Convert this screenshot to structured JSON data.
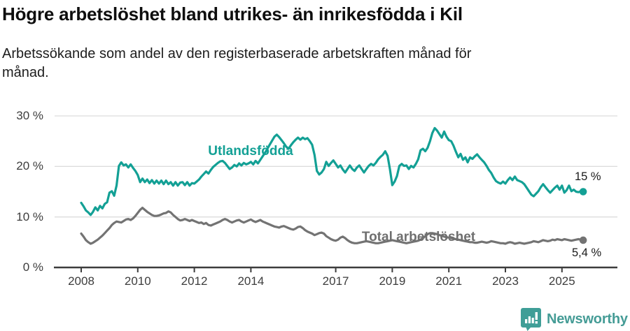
{
  "header": {
    "title": "Högre arbetslöshet bland utrikes- än inrikesfödda i Kil",
    "subtitle_lines": [
      "Arbetssökande som andel av den registerbaserade arbetskraften månad för",
      "månad."
    ]
  },
  "chart_data": {
    "type": "line",
    "unit": "%",
    "x_start": "2008-01",
    "x_end": "2025-10",
    "points_per_year": 12,
    "ylim": [
      0,
      30
    ],
    "grid": "horizontal",
    "legend_position": "inline-labels-on-chart",
    "y_ticks": [
      {
        "value": 0,
        "label": "0 %"
      },
      {
        "value": 10,
        "label": "10 %"
      },
      {
        "value": 20,
        "label": "20 %"
      },
      {
        "value": 30,
        "label": "30 %"
      }
    ],
    "x_ticks": [
      {
        "year": 2008,
        "label": "2008"
      },
      {
        "year": 2010,
        "label": "2010"
      },
      {
        "year": 2012,
        "label": "2012"
      },
      {
        "year": 2014,
        "label": "2014"
      },
      {
        "year": 2017,
        "label": "2017"
      },
      {
        "year": 2019,
        "label": "2019"
      },
      {
        "year": 2021,
        "label": "2021"
      },
      {
        "year": 2023,
        "label": "2023"
      },
      {
        "year": 2025,
        "label": "2025"
      }
    ],
    "series": [
      {
        "name": "Utlandsfödda",
        "color": "#13a095",
        "end_label": "15 %",
        "end_value": 15.0,
        "values": [
          12.8,
          12.1,
          11.3,
          10.9,
          10.4,
          11.0,
          11.9,
          11.3,
          12.2,
          11.7,
          12.6,
          12.9,
          14.8,
          15.1,
          14.2,
          16.2,
          20.1,
          20.8,
          20.2,
          20.4,
          19.8,
          20.4,
          19.7,
          19.1,
          18.3,
          16.9,
          17.6,
          16.9,
          17.4,
          16.7,
          17.3,
          16.6,
          17.2,
          16.6,
          17.2,
          16.5,
          17.2,
          16.5,
          16.9,
          16.2,
          16.9,
          16.2,
          16.8,
          16.9,
          16.3,
          16.9,
          16.2,
          16.7,
          16.6,
          17.0,
          17.4,
          18.0,
          18.5,
          19.0,
          18.6,
          19.3,
          19.9,
          20.3,
          20.7,
          21.0,
          21.1,
          20.7,
          20.1,
          19.5,
          19.8,
          20.3,
          20.0,
          20.6,
          20.2,
          20.7,
          20.4,
          20.6,
          20.9,
          20.4,
          21.1,
          20.6,
          21.3,
          22.0,
          22.7,
          23.5,
          24.3,
          25.1,
          25.9,
          26.3,
          25.8,
          25.2,
          24.6,
          23.9,
          23.5,
          24.2,
          24.8,
          25.3,
          25.7,
          25.3,
          25.7,
          25.4,
          25.6,
          25.0,
          24.3,
          22.3,
          19.1,
          18.4,
          18.8,
          19.5,
          20.9,
          20.1,
          20.7,
          21.2,
          20.5,
          19.8,
          20.2,
          19.4,
          18.8,
          19.5,
          20.2,
          19.5,
          19.1,
          19.8,
          20.2,
          19.5,
          18.8,
          19.5,
          20.1,
          20.5,
          20.2,
          20.7,
          21.4,
          21.9,
          22.3,
          23.0,
          22.1,
          19.5,
          16.3,
          17.0,
          18.1,
          20.1,
          20.5,
          20.1,
          20.2,
          19.5,
          20.1,
          19.8,
          20.5,
          21.4,
          23.2,
          23.5,
          23.0,
          23.7,
          25.0,
          26.6,
          27.6,
          27.1,
          26.4,
          25.7,
          26.9,
          25.9,
          25.2,
          25.0,
          24.1,
          22.9,
          21.8,
          22.5,
          21.3,
          21.8,
          20.8,
          21.8,
          21.5,
          22.0,
          22.4,
          21.8,
          21.3,
          20.8,
          20.1,
          19.3,
          18.7,
          17.8,
          17.1,
          16.8,
          16.6,
          17.0,
          16.6,
          17.3,
          17.8,
          17.3,
          18.0,
          17.3,
          17.1,
          16.9,
          16.5,
          15.8,
          15.1,
          14.4,
          14.1,
          14.6,
          15.1,
          15.9,
          16.5,
          15.9,
          15.3,
          14.8,
          15.3,
          15.8,
          16.2,
          15.4,
          16.2,
          14.8,
          15.3,
          16.2,
          15.1,
          15.4,
          15.0,
          14.9,
          15.1,
          15.0
        ]
      },
      {
        "name": "Total arbetslöshet",
        "color": "#737373",
        "end_label": "5,4 %",
        "end_value": 5.4,
        "values": [
          6.7,
          6.1,
          5.4,
          5.0,
          4.7,
          4.9,
          5.2,
          5.5,
          5.9,
          6.3,
          6.8,
          7.3,
          7.8,
          8.4,
          8.8,
          9.1,
          9.0,
          8.9,
          9.2,
          9.5,
          9.6,
          9.4,
          9.7,
          10.2,
          10.8,
          11.4,
          11.8,
          11.4,
          11.0,
          10.7,
          10.4,
          10.2,
          10.2,
          10.3,
          10.5,
          10.7,
          10.8,
          11.1,
          10.9,
          10.4,
          10.0,
          9.6,
          9.3,
          9.4,
          9.6,
          9.4,
          9.2,
          9.4,
          9.2,
          9.0,
          8.8,
          8.9,
          8.6,
          8.8,
          8.4,
          8.3,
          8.5,
          8.7,
          8.9,
          9.1,
          9.4,
          9.6,
          9.4,
          9.1,
          8.9,
          9.1,
          9.3,
          9.4,
          9.1,
          8.9,
          9.1,
          9.3,
          9.5,
          9.2,
          9.0,
          9.2,
          9.4,
          9.1,
          8.9,
          8.7,
          8.5,
          8.3,
          8.1,
          8.0,
          7.9,
          8.1,
          8.2,
          8.0,
          7.8,
          7.6,
          7.5,
          7.7,
          8.0,
          8.1,
          7.8,
          7.4,
          7.1,
          6.9,
          6.7,
          6.4,
          6.6,
          6.8,
          6.9,
          6.7,
          6.2,
          5.9,
          5.6,
          5.4,
          5.3,
          5.5,
          5.9,
          6.1,
          5.8,
          5.4,
          5.1,
          4.9,
          4.8,
          4.8,
          4.9,
          5.0,
          5.1,
          5.2,
          5.1,
          5.0,
          4.9,
          4.8,
          4.8,
          4.9,
          5.0,
          5.1,
          5.2,
          5.3,
          5.4,
          5.3,
          5.2,
          5.1,
          5.0,
          4.9,
          4.8,
          4.9,
          5.0,
          5.1,
          5.2,
          5.3,
          5.5,
          5.8,
          6.2,
          6.6,
          6.8,
          6.8,
          6.7,
          6.6,
          6.4,
          6.3,
          6.1,
          6.0,
          5.9,
          5.8,
          5.7,
          5.6,
          5.5,
          5.4,
          5.3,
          5.2,
          5.1,
          5.0,
          5.0,
          4.9,
          4.9,
          5.0,
          5.1,
          5.0,
          4.9,
          5.0,
          5.2,
          5.1,
          5.0,
          4.9,
          4.8,
          4.8,
          4.7,
          4.9,
          5.0,
          4.9,
          4.7,
          4.8,
          4.9,
          4.8,
          4.7,
          4.8,
          4.9,
          5.0,
          5.2,
          5.1,
          5.0,
          5.2,
          5.4,
          5.3,
          5.2,
          5.3,
          5.5,
          5.4,
          5.6,
          5.5,
          5.4,
          5.6,
          5.5,
          5.4,
          5.3,
          5.4,
          5.5,
          5.6,
          5.5,
          5.4
        ]
      }
    ]
  },
  "footer": {
    "brand": "Newsworthy",
    "brand_color": "#459c96",
    "logo_icon": "bar-chart-speech-bubble-icon"
  },
  "colors": {
    "background": "#ffffff",
    "gridline": "#dcdcdc",
    "axis": "#3d3d3d",
    "series_foreign_born": "#13a095",
    "series_total": "#737373"
  }
}
